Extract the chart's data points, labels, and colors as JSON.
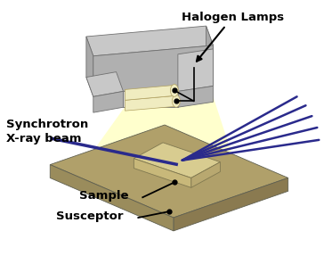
{
  "bg_color": "#ffffff",
  "halogen_label": "Halogen Lamps",
  "synch_label": "Synchrotron\nX-ray beam",
  "sample_label": "Sample",
  "susceptor_label": "Susceptor",
  "lamp_top_color": "#c8c8c8",
  "lamp_side_color": "#a8a8a8",
  "lamp_front_color": "#b0b0b0",
  "lamp_inner_color": "#d8d8d8",
  "susc_top_color": "#b0a06a",
  "susc_side_color": "#8a7a50",
  "susc_front_color": "#9a8c5c",
  "samp_top_color": "#d8cc90",
  "samp_side_color": "#b8a870",
  "samp_front_color": "#c8b87a",
  "bulb_color": "#f0ecc0",
  "xray_color": "#2a2a8c",
  "light_color": "#ffffc8",
  "label_fontsize": 9.5,
  "label_fontweight": "bold"
}
